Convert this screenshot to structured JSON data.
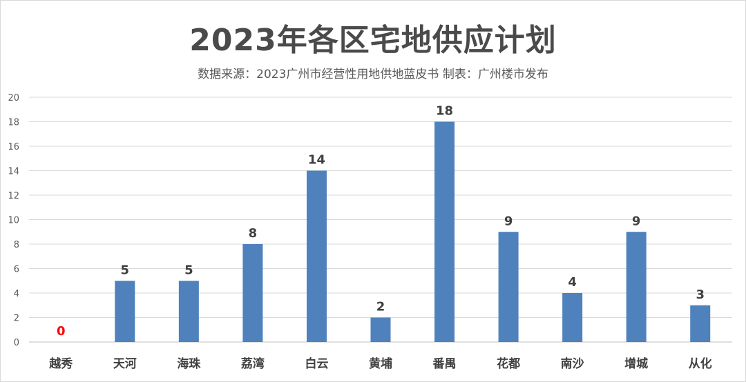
{
  "chart_data": {
    "type": "bar",
    "title": "2023年各区宅地供应计划",
    "subtitle": "数据来源：2023广州市经营性用地供地蓝皮书   制表：广州楼市发布",
    "categories": [
      "越秀",
      "天河",
      "海珠",
      "荔湾",
      "白云",
      "黄埔",
      "番禺",
      "花都",
      "南沙",
      "增城",
      "从化"
    ],
    "values": [
      0,
      5,
      5,
      8,
      14,
      2,
      18,
      9,
      4,
      9,
      3
    ],
    "ylim": [
      0,
      20
    ],
    "yticks": [
      0,
      2,
      4,
      6,
      8,
      10,
      12,
      14,
      16,
      18,
      20
    ],
    "grid": true,
    "legend": "none",
    "bar_color": "#4f81bd",
    "label_color": "#404040",
    "zero_label_color": "#ff0000"
  }
}
